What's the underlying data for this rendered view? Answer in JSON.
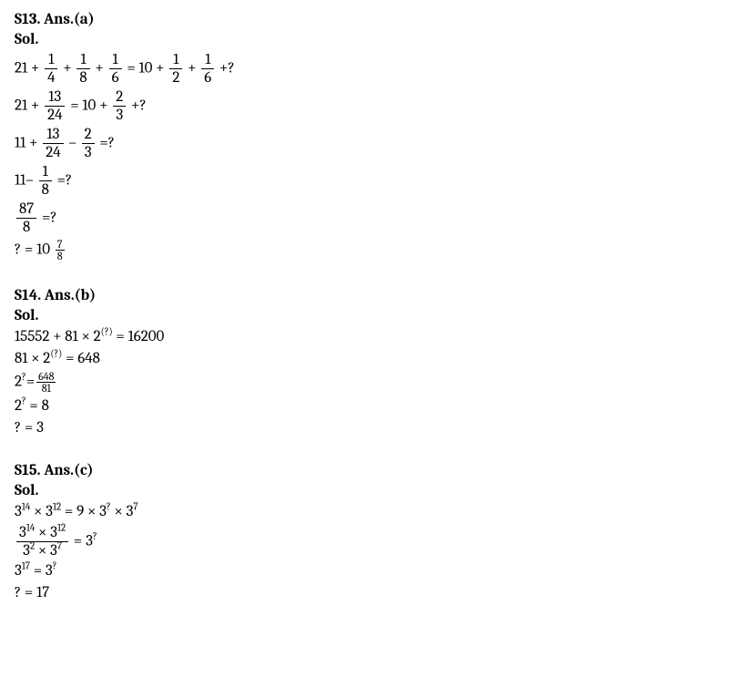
{
  "s13": {
    "heading": "S13. Ans.(a)",
    "sol": "Sol.",
    "lhs1_first": "21 +",
    "f1n": "1",
    "f1d": "4",
    "plus1": "+",
    "f2n": "1",
    "f2d": "8",
    "plus2": "+",
    "f3n": "1",
    "f3d": "6",
    "eq1_mid": "= 10 +",
    "f4n": "1",
    "f4d": "2",
    "plus3": "+",
    "f5n": "1",
    "f5d": "6",
    "tail1": "+?",
    "l2_first": "21 +",
    "f6n": "13",
    "f6d": "24",
    "l2_mid": "= 10 +",
    "f7n": "2",
    "f7d": "3",
    "tail2": "+?",
    "l3_first": "11 +",
    "f8n": "13",
    "f8d": "24",
    "minus1": "–",
    "f9n": "2",
    "f9d": "3",
    "tail3": "=?",
    "l4_first": "11–",
    "f10n": "1",
    "f10d": "8",
    "tail4": "=?",
    "f11n": "87",
    "f11d": "8",
    "tail5": "=?",
    "l6_first": "? = 10",
    "f12n": "7",
    "f12d": "8"
  },
  "s14": {
    "heading": "S14. Ans.(b)",
    "sol": "Sol.",
    "l1": "15552 + 81  × 2",
    "sup1": "(?)",
    "l1b": " = 16200",
    "l2": "81  × 2",
    "sup2": "(?)",
    "l2b": " = 648",
    "l3a": "2",
    "sup3": "?",
    "l3eq": "=",
    "f1n": "648",
    "f1d": "81",
    "l4a": "2",
    "sup4": "?",
    "l4b": " = 8",
    "l5": "? = 3"
  },
  "s15": {
    "heading": "S15. Ans.(c)",
    "sol": "Sol.",
    "l1a": "3",
    "sup1": "14",
    "l1b": " × 3",
    "sup2": "12",
    "l1c": " = 9 × 3",
    "sup3": "?",
    "l1d": " × 3",
    "sup4": "7",
    "f_num_a": "3",
    "f_num_s1": "14",
    "f_num_b": " × 3",
    "f_num_s2": "12",
    "f_den_a": "3",
    "f_den_s1": "2",
    "f_den_b": " × 3",
    "f_den_s2": "7",
    "l2b": " = 3",
    "sup5": "?",
    "l3a": "3",
    "sup6": "17",
    "l3b": " = 3",
    "sup7": "?",
    "l4": "? = 17"
  }
}
